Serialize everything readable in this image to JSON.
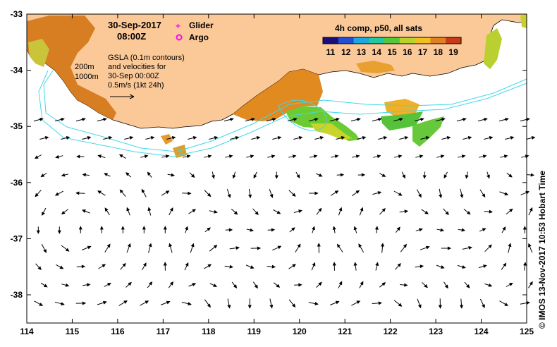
{
  "map": {
    "date": "30-Sep-2017",
    "time": "08:00Z",
    "legend_glider": "Glider",
    "legend_argo": "Argo",
    "glider_color": "#ff00ff",
    "argo_color": "#ff00ff",
    "gsla_lines": [
      "GSLA (0.1m contours)",
      "and velocities for",
      "30-Sep 00:00Z",
      "0.5m/s (1kt 24h)"
    ],
    "isobath_labels": [
      "200m",
      "1000m"
    ],
    "colorbar": {
      "title": "4h comp, p50, all sats",
      "ticks": [
        "11",
        "12",
        "13",
        "14",
        "15",
        "16",
        "17",
        "18",
        "19"
      ],
      "colors": [
        "#1a0f7a",
        "#1f4fd6",
        "#19a8e0",
        "#20c9a0",
        "#55c83a",
        "#b8d42a",
        "#f0c020",
        "#e08020",
        "#c83a18"
      ]
    },
    "x_ticks": [
      "114",
      "115",
      "116",
      "117",
      "118",
      "119",
      "120",
      "121",
      "122",
      "123",
      "124",
      "125"
    ],
    "y_ticks": [
      "-33",
      "-34",
      "-35",
      "-36",
      "-37",
      "-38"
    ],
    "credit": "© IMOS 13-Nov-2017 10:53 Hobart Time",
    "land_color": "#fbc898",
    "contour_color": "#40d8e8"
  }
}
